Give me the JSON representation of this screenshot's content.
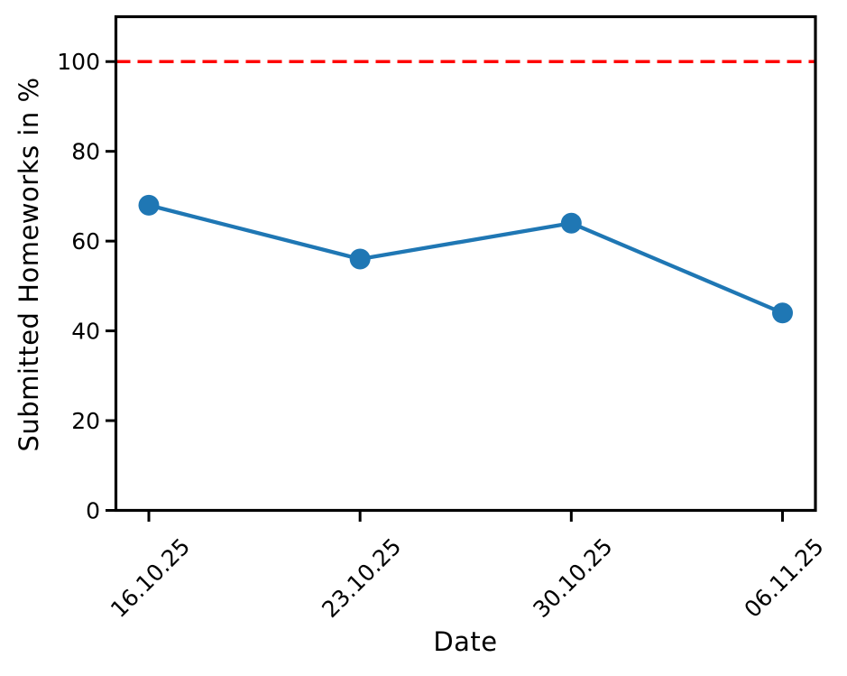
{
  "chart_data": {
    "type": "line",
    "title": "",
    "xlabel": "Date",
    "ylabel": "Submitted Homeworks in %",
    "categories": [
      "16.10.25",
      "23.10.25",
      "30.10.25",
      "06.11.25"
    ],
    "series": [
      {
        "name": "Submitted Homeworks in %",
        "values": [
          68,
          56,
          64,
          44
        ],
        "color": "#1f77b4",
        "marker": "circle"
      }
    ],
    "reference_line": {
      "value": 100,
      "color": "#ff0000",
      "style": "dashed"
    },
    "yticks": [
      0,
      20,
      40,
      60,
      80,
      100
    ],
    "ylim": [
      0,
      110
    ],
    "grid": false,
    "legend_visible": false,
    "axis_color": "#000000",
    "background_color": "#ffffff"
  }
}
